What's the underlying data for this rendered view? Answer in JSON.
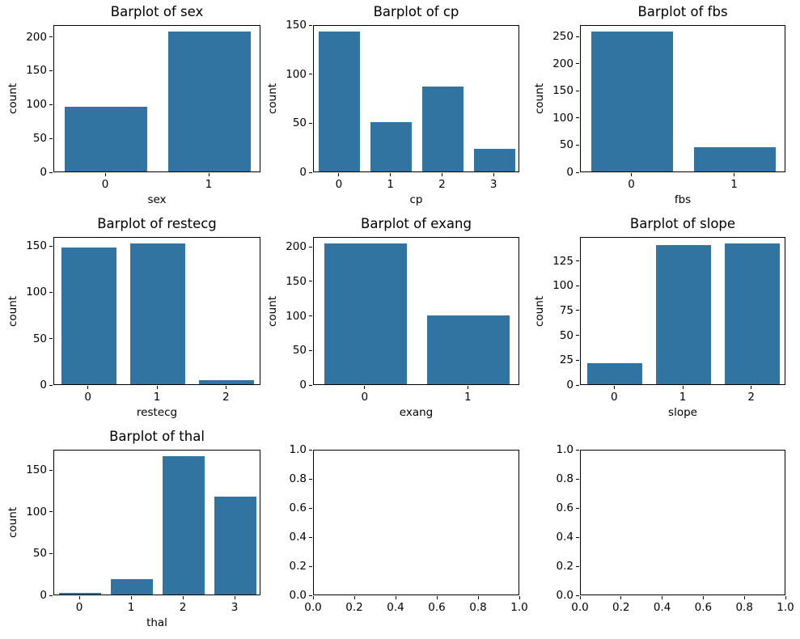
{
  "figure": {
    "background": "#ffffff",
    "bar_color": "#3274a1",
    "spine_color": "#000000",
    "text_color": "#000000"
  },
  "chart_data": [
    {
      "id": "sex",
      "type": "bar",
      "title": "Barplot of sex",
      "xlabel": "sex",
      "ylabel": "count",
      "categories": [
        "0",
        "1"
      ],
      "values": [
        96,
        207
      ],
      "yticks": [
        "0",
        "50",
        "100",
        "150",
        "200"
      ],
      "ylim": [
        0,
        217.35
      ],
      "bar_width": 0.8,
      "grid_on": false,
      "legend": "none",
      "grid": [
        0,
        0
      ]
    },
    {
      "id": "cp",
      "type": "bar",
      "title": "Barplot of cp",
      "xlabel": "cp",
      "ylabel": "count",
      "categories": [
        "0",
        "1",
        "2",
        "3"
      ],
      "values": [
        143,
        50,
        87,
        23
      ],
      "yticks": [
        "0",
        "50",
        "100",
        "150"
      ],
      "ylim": [
        0,
        150.15
      ],
      "bar_width": 0.8,
      "grid_on": false,
      "legend": "none",
      "grid": [
        0,
        1
      ]
    },
    {
      "id": "fbs",
      "type": "bar",
      "title": "Barplot of fbs",
      "xlabel": "fbs",
      "ylabel": "count",
      "categories": [
        "0",
        "1"
      ],
      "values": [
        258,
        45
      ],
      "yticks": [
        "0",
        "50",
        "100",
        "150",
        "200",
        "250"
      ],
      "ylim": [
        0,
        270.9
      ],
      "bar_width": 0.8,
      "grid_on": false,
      "legend": "none",
      "grid": [
        0,
        2
      ]
    },
    {
      "id": "restecg",
      "type": "bar",
      "title": "Barplot of restecg",
      "xlabel": "restecg",
      "ylabel": "count",
      "categories": [
        "0",
        "1",
        "2"
      ],
      "values": [
        147,
        152,
        4
      ],
      "yticks": [
        "0",
        "50",
        "100",
        "150"
      ],
      "ylim": [
        0,
        159.6
      ],
      "bar_width": 0.8,
      "grid_on": false,
      "legend": "none",
      "grid": [
        1,
        0
      ]
    },
    {
      "id": "exang",
      "type": "bar",
      "title": "Barplot of exang",
      "xlabel": "exang",
      "ylabel": "count",
      "categories": [
        "0",
        "1"
      ],
      "values": [
        204,
        99
      ],
      "yticks": [
        "0",
        "50",
        "100",
        "150",
        "200"
      ],
      "ylim": [
        0,
        214.2
      ],
      "bar_width": 0.8,
      "grid_on": false,
      "legend": "none",
      "grid": [
        1,
        1
      ]
    },
    {
      "id": "slope",
      "type": "bar",
      "title": "Barplot of slope",
      "xlabel": "slope",
      "ylabel": "count",
      "categories": [
        "0",
        "1",
        "2"
      ],
      "values": [
        21,
        140,
        142
      ],
      "yticks": [
        "0",
        "25",
        "50",
        "75",
        "100",
        "125"
      ],
      "ylim": [
        0,
        149.1
      ],
      "bar_width": 0.8,
      "grid_on": false,
      "legend": "none",
      "grid": [
        1,
        2
      ]
    },
    {
      "id": "thal",
      "type": "bar",
      "title": "Barplot of thal",
      "xlabel": "thal",
      "ylabel": "count",
      "categories": [
        "0",
        "1",
        "2",
        "3"
      ],
      "values": [
        2,
        18,
        166,
        117
      ],
      "yticks": [
        "0",
        "50",
        "100",
        "150"
      ],
      "ylim": [
        0,
        174.3
      ],
      "bar_width": 0.8,
      "grid_on": false,
      "legend": "none",
      "grid": [
        2,
        0
      ]
    },
    {
      "id": "empty-1",
      "type": "empty",
      "xticks": [
        "0.0",
        "0.2",
        "0.4",
        "0.6",
        "0.8",
        "1.0"
      ],
      "yticks": [
        "0.0",
        "0.2",
        "0.4",
        "0.6",
        "0.8",
        "1.0"
      ],
      "xlim": [
        0,
        1
      ],
      "ylim": [
        0,
        1
      ],
      "grid_on": false,
      "grid": [
        2,
        1
      ]
    },
    {
      "id": "empty-2",
      "type": "empty",
      "xticks": [
        "0.0",
        "0.2",
        "0.4",
        "0.6",
        "0.8",
        "1.0"
      ],
      "yticks": [
        "0.0",
        "0.2",
        "0.4",
        "0.6",
        "0.8",
        "1.0"
      ],
      "xlim": [
        0,
        1
      ],
      "ylim": [
        0,
        1
      ],
      "grid_on": false,
      "grid": [
        2,
        2
      ]
    }
  ]
}
